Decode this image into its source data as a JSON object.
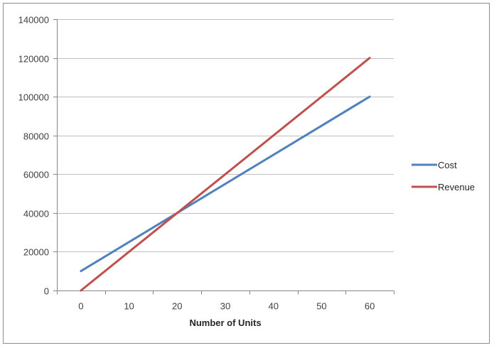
{
  "chart_data": {
    "type": "line",
    "title": "",
    "xlabel": "Number of Units",
    "ylabel": "",
    "x": [
      0,
      60
    ],
    "xticks": [
      0,
      10,
      20,
      30,
      40,
      50,
      60
    ],
    "xlim": [
      -5,
      65
    ],
    "yticks": [
      0,
      20000,
      40000,
      60000,
      80000,
      100000,
      120000,
      140000
    ],
    "ytick_labels": [
      "0",
      "20000",
      "40000",
      "60000",
      "80000",
      "100000",
      "120000",
      "140000"
    ],
    "ylim": [
      0,
      140000
    ],
    "grid": "horizontal",
    "legend_position": "right",
    "series": [
      {
        "name": "Cost",
        "color": "#4f81bd",
        "x": [
          0,
          60
        ],
        "values": [
          10000,
          100000
        ]
      },
      {
        "name": "Revenue",
        "color": "#c0504d",
        "x": [
          0,
          60
        ],
        "values": [
          0,
          120000
        ]
      }
    ]
  }
}
